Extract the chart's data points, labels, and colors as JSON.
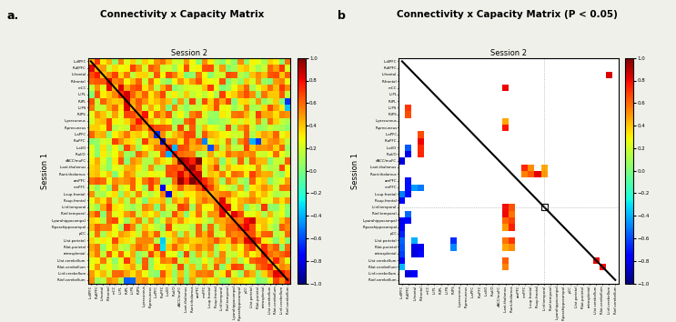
{
  "labels": [
    "L.dlPFC",
    "R.dlPFC",
    "L.frontal",
    "R.frontal",
    "mCC",
    "L.IPL",
    "R.IPL",
    "L.IPS",
    "R.IPS",
    "L.precuneus",
    "R.precuneus",
    "L.aPFC",
    "R.aPFC",
    "L.aI/O",
    "R.aI/O",
    "dACC/muFC",
    "L.ant.thalamus",
    "R.ant.thalamus",
    "amPFC",
    "vmPFC",
    "L.sup.frontal",
    "R.sup.frontal",
    "L.inf.temporal",
    "R.inf.temporal",
    "L.parahippocampal",
    "R.parahippocampal",
    "pCC",
    "L.lat.parietal",
    "R.lat.parietal",
    "retrosplenial",
    "L.lat.cerebellum",
    "R.lat.cerebellum",
    "L.inf.cerebellum",
    "R.inf.cerebellum"
  ],
  "title_a": "Connectivity x Capacity Matrix",
  "title_b": "Connectivity x Capacity Matrix (P < 0.05)",
  "session1_label": "Session 1",
  "session2_label": "Session 2",
  "label_a": "a.",
  "label_b": "b",
  "vmin": -1,
  "vmax": 1,
  "fig_background": "#f0f0eb",
  "panel_b_background": "white",
  "colorbar_ticks": [
    -1,
    -0.8,
    -0.6,
    -0.4,
    -0.2,
    0,
    0.2,
    0.4,
    0.6,
    0.8,
    1
  ],
  "diagonal_linewidth": 1.5,
  "tick_fontsize": 2.8,
  "ylabel_fontsize": 6,
  "title_fontsize": 6,
  "panel_label_fontsize": 9,
  "main_title_fontsize": 7.5,
  "cbar_tick_fontsize": 4
}
